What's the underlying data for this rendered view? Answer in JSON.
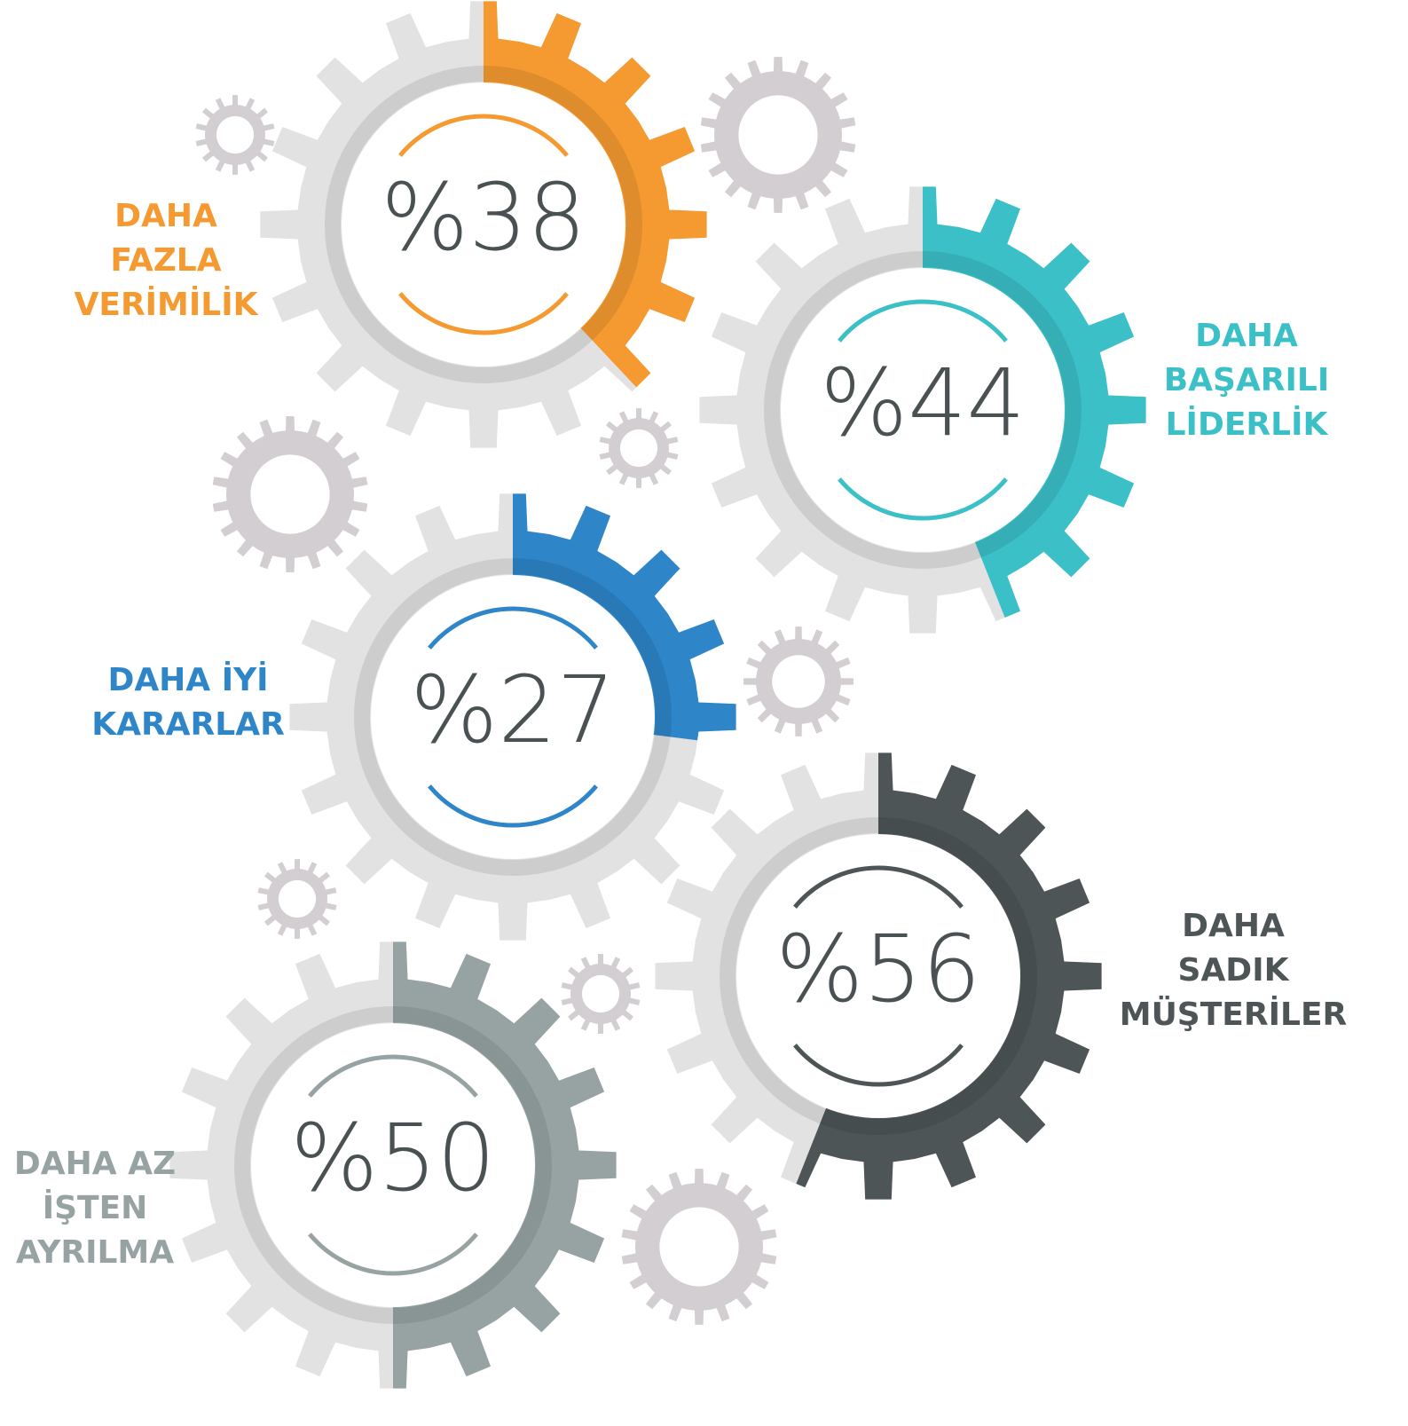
{
  "chart_data": {
    "type": "gear",
    "categories": [
      [
        "DAHA",
        "FAZLA",
        "VERİMİLİK"
      ],
      [
        "DAHA",
        "BAŞARILI",
        "LİDERLİK"
      ],
      [
        "DAHA İYİ",
        "KARARLAR"
      ],
      [
        "DAHA",
        "SADIK",
        "MÜŞTERİLER"
      ],
      [
        "DAHA AZ",
        "İŞTEN",
        "AYRILMA"
      ]
    ],
    "values": [
      38,
      44,
      27,
      56,
      50
    ],
    "value_labels": [
      "%38",
      "%44",
      "%27",
      "%56",
      "%50"
    ],
    "colors": [
      "#f59a31",
      "#3cc0c8",
      "#2e86c8",
      "#4d5557",
      "#97a3a3"
    ]
  }
}
